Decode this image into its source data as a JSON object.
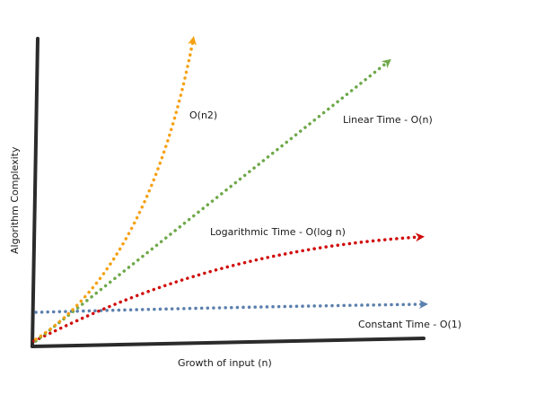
{
  "axes": {
    "x_label": "Growth of input (n)",
    "y_label": "Algorithm Complexity"
  },
  "curves": [
    {
      "id": "quadratic",
      "label": "O(n2)",
      "color": "#f5a011"
    },
    {
      "id": "linear",
      "label": "Linear Time - O(n)",
      "color": "#6fa84a"
    },
    {
      "id": "logarithmic",
      "label": "Logarithmic Time - O(log n)",
      "color": "#d10a0a"
    },
    {
      "id": "constant",
      "label": "Constant Time - O(1)",
      "color": "#5b80ad"
    }
  ]
}
